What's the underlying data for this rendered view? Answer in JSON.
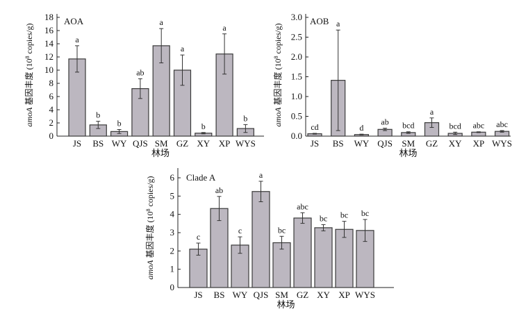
{
  "chart_data": [
    {
      "type": "bar",
      "title": "AOA",
      "xlabel": "林场",
      "ylabel": {
        "gene": "amoA",
        "text": " 基因丰度 (10",
        "sup": "8",
        "unit": " copies/g)"
      },
      "categories": [
        "JS",
        "BS",
        "WY",
        "QJS",
        "SM",
        "GZ",
        "XY",
        "XP",
        "WYS"
      ],
      "values": [
        11.7,
        1.7,
        0.7,
        7.2,
        13.7,
        10.0,
        0.45,
        12.45,
        1.15
      ],
      "errors": [
        2.0,
        0.55,
        0.3,
        1.5,
        2.6,
        2.3,
        0.1,
        3.05,
        0.6
      ],
      "significance": [
        "a",
        "b",
        "b",
        "ab",
        "a",
        "a",
        "b",
        "a",
        "b"
      ],
      "ylim": [
        0,
        18
      ],
      "yticks": [
        "0",
        "2",
        "4",
        "6",
        "8",
        "10",
        "12",
        "14",
        "16",
        "18"
      ],
      "ytick_values": [
        0,
        2,
        4,
        6,
        8,
        10,
        12,
        14,
        16,
        18
      ]
    },
    {
      "type": "bar",
      "title": "AOB",
      "xlabel": "林场",
      "ylabel": {
        "gene": "amoA",
        "text": " 基因丰度 (10",
        "sup": "8",
        "unit": " copies/g)"
      },
      "categories": [
        "JS",
        "BS",
        "WY",
        "QJS",
        "SM",
        "GZ",
        "XY",
        "XP",
        "WYS"
      ],
      "values": [
        0.06,
        1.41,
        0.04,
        0.17,
        0.09,
        0.34,
        0.07,
        0.1,
        0.12
      ],
      "errors": [
        0.01,
        1.27,
        0.01,
        0.03,
        0.02,
        0.12,
        0.03,
        0.01,
        0.02
      ],
      "significance": [
        "cd",
        "a",
        "d",
        "ab",
        "bcd",
        "a",
        "bcd",
        "abc",
        "abc"
      ],
      "ylim": [
        0,
        3
      ],
      "yticks": [
        "0.0",
        "0.5",
        "1.0",
        "1.5",
        "2.0",
        "2.5",
        "3.0"
      ],
      "ytick_values": [
        0,
        0.5,
        1,
        1.5,
        2,
        2.5,
        3
      ]
    },
    {
      "type": "bar",
      "title": "Clade A",
      "xlabel": "林场",
      "ylabel": {
        "gene": "amoA",
        "text": " 基因丰度 (10",
        "sup": "8",
        "unit": " copies/g)"
      },
      "categories": [
        "JS",
        "BS",
        "WY",
        "QJS",
        "SM",
        "GZ",
        "XY",
        "XP",
        "WYS"
      ],
      "values": [
        2.1,
        4.32,
        2.32,
        5.25,
        2.45,
        3.8,
        3.27,
        3.18,
        3.12
      ],
      "errors": [
        0.33,
        0.66,
        0.45,
        0.56,
        0.35,
        0.29,
        0.17,
        0.44,
        0.6
      ],
      "significance": [
        "c",
        "ab",
        "c",
        "a",
        "bc",
        "abc",
        "bc",
        "bc",
        "bc"
      ],
      "ylim": [
        0,
        6.5
      ],
      "yticks": [
        "0",
        "1",
        "2",
        "3",
        "4",
        "5",
        "6"
      ],
      "ytick_values": [
        0,
        1,
        2,
        3,
        4,
        5,
        6
      ]
    }
  ],
  "colors": {
    "bar_fill": "#bcb7c0",
    "bar_stroke": "#3a3a3a",
    "axis": "#222222"
  }
}
